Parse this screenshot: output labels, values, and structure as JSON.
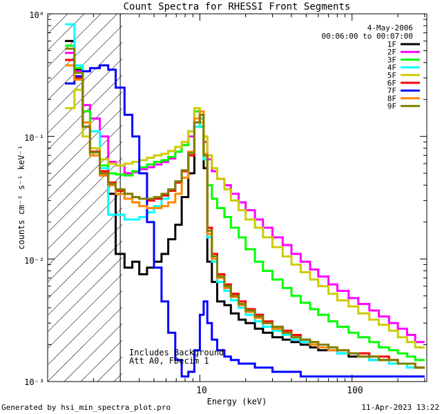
{
  "chart_data": {
    "type": "line",
    "title": "Count Spectra for RHESSI Front Segments",
    "xlabel": "Energy (keV)",
    "ylabel": "counts cm⁻² s⁻¹ keV⁻¹",
    "xscale": "log",
    "yscale": "log",
    "xlim": [
      1.0,
      310.0
    ],
    "ylim": [
      0.001,
      1.0
    ],
    "x_major_ticks": [
      {
        "value": 10,
        "label": "10"
      },
      {
        "value": 100,
        "label": "100"
      }
    ],
    "y_major_ticks": [
      {
        "value": 1,
        "label": "10⁰"
      },
      {
        "value": 0.1,
        "label": "10⁻¹"
      },
      {
        "value": 0.01,
        "label": "10⁻²"
      },
      {
        "value": 0.001,
        "label": "10⁻³"
      }
    ],
    "legend": {
      "position": "top-right",
      "date": "4-May-2006",
      "time_range": "00:06:00 to 00:07:00"
    },
    "background_region": {
      "x_from": 1.0,
      "x_to": 3.0,
      "pattern": "hatched"
    },
    "annotations": [
      "Includes Background",
      "Att A0, FDecim 1"
    ],
    "footer_left": "Generated by hsi_min_spectra_plot.pro",
    "footer_right": "11-Apr-2023 13:22",
    "energy_edges": [
      1.3,
      1.5,
      1.7,
      1.9,
      2.2,
      2.5,
      2.8,
      3.2,
      3.6,
      4.0,
      4.5,
      5.0,
      5.6,
      6.2,
      6.9,
      7.6,
      8.4,
      9.2,
      10.0,
      10.6,
      11.2,
      12.0,
      13.0,
      14.5,
      16.0,
      18.0,
      20.0,
      23.0,
      26.0,
      30.0,
      35.0,
      40.0,
      46.0,
      53.0,
      60.0,
      70.0,
      80.0,
      95.0,
      110.0,
      130.0,
      150.0,
      175.0,
      200.0,
      230.0,
      260.0,
      300.0
    ],
    "series": [
      {
        "name": "1F",
        "color": "#000000",
        "values": [
          0.6,
          0.35,
          0.13,
          0.075,
          0.048,
          0.034,
          0.011,
          0.0085,
          0.0095,
          0.0075,
          0.0085,
          0.0095,
          0.011,
          0.0145,
          0.019,
          0.032,
          0.05,
          0.12,
          0.14,
          0.055,
          0.0095,
          0.0065,
          0.0045,
          0.0042,
          0.0036,
          0.0032,
          0.003,
          0.0027,
          0.0025,
          0.0023,
          0.0022,
          0.0021,
          0.002,
          0.0019,
          0.0018,
          0.0018,
          0.0017,
          0.0016,
          0.0016,
          0.0015,
          0.0015,
          0.0015,
          0.0014,
          0.0014,
          0.0013
        ]
      },
      {
        "name": "2F",
        "color": "#ff00ff",
        "values": [
          0.48,
          0.34,
          0.18,
          0.14,
          0.1,
          0.062,
          0.058,
          0.05,
          0.051,
          0.054,
          0.056,
          0.059,
          0.062,
          0.066,
          0.075,
          0.085,
          0.1,
          0.16,
          0.12,
          0.09,
          0.065,
          0.052,
          0.045,
          0.04,
          0.034,
          0.029,
          0.025,
          0.021,
          0.018,
          0.015,
          0.013,
          0.011,
          0.0095,
          0.0082,
          0.0072,
          0.0062,
          0.0055,
          0.0048,
          0.0043,
          0.0038,
          0.0034,
          0.003,
          0.0027,
          0.0024,
          0.0021
        ]
      },
      {
        "name": "3F",
        "color": "#00ff00",
        "values": [
          0.55,
          0.36,
          0.16,
          0.07,
          0.058,
          0.05,
          0.049,
          0.048,
          0.052,
          0.056,
          0.059,
          0.062,
          0.064,
          0.068,
          0.075,
          0.085,
          0.11,
          0.16,
          0.12,
          0.07,
          0.04,
          0.031,
          0.026,
          0.022,
          0.018,
          0.015,
          0.012,
          0.0095,
          0.008,
          0.0068,
          0.0058,
          0.005,
          0.0044,
          0.0039,
          0.0035,
          0.0031,
          0.0028,
          0.0025,
          0.0023,
          0.0021,
          0.0019,
          0.0018,
          0.0017,
          0.0016,
          0.0015
        ]
      },
      {
        "name": "4F",
        "color": "#00ffff",
        "values": [
          0.82,
          0.38,
          0.13,
          0.11,
          0.055,
          0.023,
          0.023,
          0.021,
          0.021,
          0.022,
          0.024,
          0.027,
          0.031,
          0.036,
          0.042,
          0.052,
          0.07,
          0.12,
          0.14,
          0.065,
          0.015,
          0.0095,
          0.0065,
          0.0055,
          0.0046,
          0.004,
          0.0035,
          0.0031,
          0.0028,
          0.0026,
          0.0024,
          0.0022,
          0.0021,
          0.002,
          0.0019,
          0.0018,
          0.0017,
          0.0017,
          0.0016,
          0.0015,
          0.0015,
          0.0014,
          0.0014,
          0.0013,
          0.0013
        ]
      },
      {
        "name": "5F",
        "color": "#cccc00",
        "values": [
          0.17,
          0.24,
          0.1,
          0.08,
          0.065,
          0.06,
          0.058,
          0.06,
          0.062,
          0.064,
          0.067,
          0.07,
          0.072,
          0.076,
          0.082,
          0.09,
          0.11,
          0.17,
          0.13,
          0.1,
          0.07,
          0.055,
          0.045,
          0.037,
          0.03,
          0.025,
          0.021,
          0.018,
          0.015,
          0.0125,
          0.0105,
          0.009,
          0.0078,
          0.0068,
          0.006,
          0.0052,
          0.0046,
          0.0041,
          0.0036,
          0.0032,
          0.0029,
          0.0026,
          0.0023,
          0.0021,
          0.0019
        ]
      },
      {
        "name": "6F",
        "color": "#ff0000",
        "values": [
          0.42,
          0.3,
          0.12,
          0.075,
          0.052,
          0.042,
          0.036,
          0.034,
          0.032,
          0.031,
          0.03,
          0.031,
          0.033,
          0.036,
          0.042,
          0.052,
          0.07,
          0.13,
          0.15,
          0.07,
          0.018,
          0.011,
          0.0075,
          0.0062,
          0.0052,
          0.0045,
          0.0039,
          0.0035,
          0.0031,
          0.0028,
          0.0026,
          0.0024,
          0.0022,
          0.0021,
          0.002,
          0.0019,
          0.0018,
          0.0017,
          0.0017,
          0.0016,
          0.0016,
          0.0015,
          0.0014,
          0.0014,
          0.0013
        ]
      },
      {
        "name": "7F",
        "color": "#0000ff",
        "values": [
          0.27,
          0.31,
          0.34,
          0.36,
          0.38,
          0.35,
          0.25,
          0.15,
          0.1,
          0.05,
          0.02,
          0.0085,
          0.0045,
          0.0025,
          0.0015,
          0.0011,
          0.0012,
          0.0018,
          0.0035,
          0.0045,
          0.003,
          0.0022,
          0.0018,
          0.0016,
          0.0015,
          0.0014,
          0.0014,
          0.0013,
          0.0013,
          0.0012,
          0.0012,
          0.0012,
          0.0011,
          0.0011,
          0.0011,
          0.0011,
          0.0011,
          0.0011,
          0.0011,
          0.0011,
          0.0011,
          0.0011,
          0.0011,
          0.0011,
          0.0011
        ]
      },
      {
        "name": "8F",
        "color": "#ff8800",
        "values": [
          0.38,
          0.29,
          0.13,
          0.07,
          0.048,
          0.04,
          0.034,
          0.031,
          0.029,
          0.027,
          0.026,
          0.026,
          0.027,
          0.029,
          0.034,
          0.046,
          0.075,
          0.14,
          0.16,
          0.072,
          0.016,
          0.01,
          0.007,
          0.0058,
          0.0049,
          0.0042,
          0.0037,
          0.0033,
          0.003,
          0.0027,
          0.0025,
          0.0023,
          0.0022,
          0.002,
          0.0019,
          0.0018,
          0.0018,
          0.0017,
          0.0016,
          0.0016,
          0.0015,
          0.0015,
          0.0014,
          0.0014,
          0.0013
        ]
      },
      {
        "name": "9F",
        "color": "#808000",
        "values": [
          0.52,
          0.33,
          0.12,
          0.074,
          0.05,
          0.041,
          0.037,
          0.034,
          0.032,
          0.031,
          0.031,
          0.032,
          0.034,
          0.037,
          0.043,
          0.053,
          0.073,
          0.13,
          0.15,
          0.07,
          0.017,
          0.0105,
          0.0072,
          0.006,
          0.005,
          0.0043,
          0.0038,
          0.0034,
          0.003,
          0.0028,
          0.0025,
          0.0023,
          0.0022,
          0.0021,
          0.002,
          0.0019,
          0.0018,
          0.0017,
          0.0016,
          0.0016,
          0.0015,
          0.0015,
          0.0014,
          0.0014,
          0.0013
        ]
      }
    ]
  }
}
